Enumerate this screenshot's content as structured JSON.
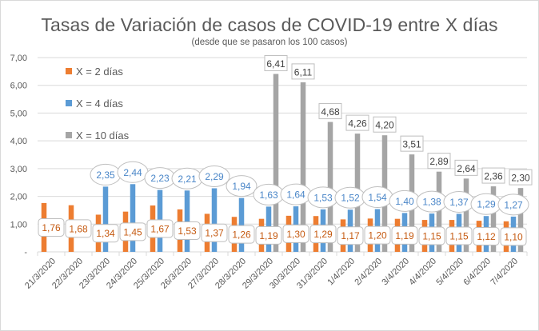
{
  "chart_data": {
    "type": "bar",
    "title": "Tasas de Variación de casos de COVID-19 entre X días",
    "subtitle": "(desde que se pasaron los 100 casos)",
    "xlabel": "",
    "ylabel": "",
    "ylim": [
      0,
      7
    ],
    "yticks": [
      0,
      1,
      2,
      3,
      4,
      5,
      6,
      7
    ],
    "ytick_labels": [
      "-",
      "1,00",
      "2,00",
      "3,00",
      "4,00",
      "5,00",
      "6,00",
      "7,00"
    ],
    "grid": true,
    "legend_position": "top-left",
    "categories": [
      "21/3/2020",
      "22/3/2020",
      "23/3/2020",
      "24/3/2020",
      "25/3/2020",
      "26/3/2020",
      "27/3/2020",
      "28/3/2020",
      "29/3/2020",
      "30/3/2020",
      "31/3/2020",
      "1/4/2020",
      "2/4/2020",
      "3/4/2020",
      "4/4/2020",
      "5/4/2020",
      "6/4/2020",
      "7/4/2020"
    ],
    "series": [
      {
        "name": "X = 2 días",
        "color": "#ED7D31",
        "values": [
          1.76,
          1.68,
          1.34,
          1.45,
          1.67,
          1.53,
          1.37,
          1.26,
          1.19,
          1.3,
          1.29,
          1.17,
          1.2,
          1.19,
          1.15,
          1.15,
          1.12,
          1.1
        ],
        "labels": [
          "1,76",
          "1,68",
          "1,34",
          "1,45",
          "1,67",
          "1,53",
          "1,37",
          "1,26",
          "1,19",
          "1,30",
          "1,29",
          "1,17",
          "1,20",
          "1,19",
          "1,15",
          "1,15",
          "1,12",
          "1,10"
        ]
      },
      {
        "name": "X = 4 días",
        "color": "#5B9BD5",
        "values": [
          null,
          null,
          2.35,
          2.44,
          2.23,
          2.21,
          2.29,
          1.94,
          1.63,
          1.64,
          1.53,
          1.52,
          1.54,
          1.4,
          1.38,
          1.37,
          1.29,
          1.27
        ],
        "labels": [
          null,
          null,
          "2,35",
          "2,44",
          "2,23",
          "2,21",
          "2,29",
          "1,94",
          "1,63",
          "1,64",
          "1,53",
          "1,52",
          "1,54",
          "1,40",
          "1,38",
          "1,37",
          "1,29",
          "1,27"
        ]
      },
      {
        "name": "X = 10 días",
        "color": "#A5A5A5",
        "values": [
          null,
          null,
          null,
          null,
          null,
          null,
          null,
          null,
          6.41,
          6.11,
          4.68,
          4.26,
          4.2,
          3.51,
          2.89,
          2.64,
          2.36,
          2.3
        ],
        "labels": [
          null,
          null,
          null,
          null,
          null,
          null,
          null,
          null,
          "6,41",
          "6,11",
          "4,68",
          "4,26",
          "4,20",
          "3,51",
          "2,89",
          "2,64",
          "2,36",
          "2,30"
        ]
      }
    ]
  }
}
